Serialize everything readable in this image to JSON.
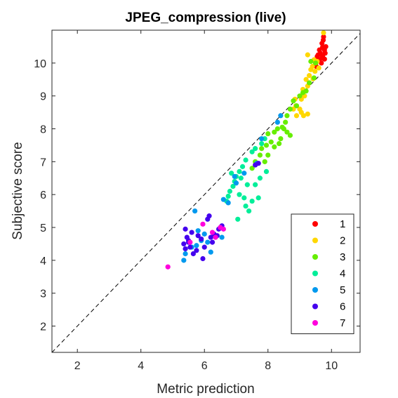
{
  "chart_data": {
    "type": "scatter",
    "title": "JPEG_compression (live)",
    "xlabel": "Metric prediction",
    "ylabel": "Subjective score",
    "xlim": [
      1.2,
      10.9
    ],
    "ylim": [
      1.2,
      11.0
    ],
    "xticks": [
      2,
      4,
      6,
      8,
      10
    ],
    "yticks": [
      2,
      3,
      4,
      5,
      6,
      7,
      8,
      9,
      10
    ],
    "grid": false,
    "reference_line": "y = x (dashed)",
    "legend_position": "bottom-right",
    "series": [
      {
        "name": "1",
        "color": "#ff0000",
        "points": [
          [
            9.75,
            10.8
          ],
          [
            9.7,
            10.6
          ],
          [
            9.72,
            10.48
          ],
          [
            9.62,
            10.4
          ],
          [
            9.78,
            10.4
          ],
          [
            9.65,
            10.3
          ],
          [
            9.8,
            10.3
          ],
          [
            9.55,
            10.2
          ],
          [
            9.72,
            10.2
          ],
          [
            9.6,
            10.1
          ],
          [
            9.78,
            10.12
          ],
          [
            9.5,
            10.0
          ],
          [
            9.68,
            10.0
          ],
          [
            9.52,
            9.9
          ],
          [
            9.7,
            10.15
          ],
          [
            9.58,
            10.25
          ],
          [
            9.82,
            10.5
          ],
          [
            9.74,
            10.7
          ]
        ]
      },
      {
        "name": "2",
        "color": "#ffd700",
        "points": [
          [
            9.75,
            10.92
          ],
          [
            9.25,
            10.25
          ],
          [
            9.45,
            10.1
          ],
          [
            9.4,
            9.9
          ],
          [
            9.35,
            9.8
          ],
          [
            9.48,
            9.75
          ],
          [
            9.3,
            9.62
          ],
          [
            9.42,
            9.52
          ],
          [
            9.2,
            9.5
          ],
          [
            9.25,
            9.3
          ],
          [
            9.1,
            9.2
          ],
          [
            9.15,
            9.0
          ],
          [
            9.05,
            8.9
          ],
          [
            8.85,
            8.9
          ],
          [
            8.88,
            8.7
          ],
          [
            9.0,
            8.6
          ],
          [
            9.05,
            8.5
          ],
          [
            8.9,
            8.4
          ],
          [
            9.25,
            8.45
          ],
          [
            9.12,
            8.4
          ],
          [
            8.8,
            8.6
          ],
          [
            9.55,
            10.05
          ],
          [
            9.6,
            9.85
          ]
        ]
      },
      {
        "name": "3",
        "color": "#66ee00",
        "points": [
          [
            9.5,
            10.0
          ],
          [
            9.35,
            10.05
          ],
          [
            9.45,
            9.55
          ],
          [
            9.3,
            9.4
          ],
          [
            9.2,
            9.15
          ],
          [
            9.1,
            9.1
          ],
          [
            9.0,
            9.0
          ],
          [
            8.8,
            8.85
          ],
          [
            8.9,
            8.7
          ],
          [
            8.7,
            8.6
          ],
          [
            8.6,
            8.4
          ],
          [
            8.55,
            8.2
          ],
          [
            8.45,
            8.05
          ],
          [
            8.3,
            8.0
          ],
          [
            8.2,
            7.9
          ],
          [
            8.0,
            7.85
          ],
          [
            8.1,
            7.6
          ],
          [
            7.95,
            7.5
          ],
          [
            7.8,
            7.4
          ],
          [
            7.75,
            7.2
          ],
          [
            7.6,
            7.0
          ],
          [
            7.5,
            6.8
          ],
          [
            8.5,
            8.0
          ],
          [
            8.7,
            7.8
          ],
          [
            8.4,
            7.7
          ],
          [
            8.2,
            7.45
          ],
          [
            8.0,
            7.2
          ],
          [
            7.9,
            7.0
          ],
          [
            8.35,
            7.55
          ],
          [
            8.6,
            7.9
          ]
        ]
      },
      {
        "name": "4",
        "color": "#00ee99",
        "points": [
          [
            7.9,
            7.7
          ],
          [
            7.8,
            7.55
          ],
          [
            7.6,
            7.4
          ],
          [
            7.5,
            7.3
          ],
          [
            7.3,
            7.05
          ],
          [
            7.2,
            6.85
          ],
          [
            7.1,
            6.7
          ],
          [
            7.0,
            6.55
          ],
          [
            6.95,
            6.4
          ],
          [
            6.9,
            6.25
          ],
          [
            6.8,
            6.1
          ],
          [
            6.75,
            5.95
          ],
          [
            6.7,
            5.8
          ],
          [
            7.15,
            6.5
          ],
          [
            7.35,
            6.3
          ],
          [
            7.1,
            6.0
          ],
          [
            7.25,
            5.9
          ],
          [
            7.5,
            5.8
          ],
          [
            7.3,
            5.65
          ],
          [
            7.05,
            5.25
          ],
          [
            7.7,
            5.9
          ],
          [
            7.6,
            6.3
          ],
          [
            7.95,
            6.7
          ],
          [
            7.75,
            6.5
          ],
          [
            7.4,
            5.5
          ],
          [
            6.85,
            6.65
          ]
        ]
      },
      {
        "name": "5",
        "color": "#0099ee",
        "points": [
          [
            8.3,
            8.2
          ],
          [
            8.4,
            8.4
          ],
          [
            7.8,
            7.7
          ],
          [
            7.65,
            6.95
          ],
          [
            7.25,
            6.65
          ],
          [
            7.0,
            6.35
          ],
          [
            6.95,
            6.55
          ],
          [
            6.75,
            5.75
          ],
          [
            6.6,
            5.85
          ],
          [
            5.7,
            5.5
          ],
          [
            5.8,
            4.9
          ],
          [
            6.0,
            4.8
          ],
          [
            5.9,
            4.6
          ],
          [
            5.6,
            4.4
          ],
          [
            5.4,
            4.2
          ],
          [
            5.35,
            4.0
          ],
          [
            5.75,
            4.45
          ],
          [
            6.1,
            4.55
          ],
          [
            6.2,
            4.25
          ],
          [
            6.55,
            4.7
          ]
        ]
      },
      {
        "name": "6",
        "color": "#4400ee",
        "points": [
          [
            7.7,
            6.95
          ],
          [
            7.6,
            6.9
          ],
          [
            6.15,
            5.35
          ],
          [
            6.1,
            5.25
          ],
          [
            5.4,
            4.95
          ],
          [
            5.6,
            4.85
          ],
          [
            5.8,
            4.75
          ],
          [
            5.9,
            4.65
          ],
          [
            5.45,
            4.7
          ],
          [
            5.5,
            4.55
          ],
          [
            5.55,
            4.4
          ],
          [
            5.65,
            4.2
          ],
          [
            5.4,
            4.35
          ],
          [
            5.35,
            4.5
          ],
          [
            5.75,
            4.3
          ],
          [
            6.0,
            4.4
          ],
          [
            6.2,
            4.7
          ],
          [
            6.3,
            4.8
          ],
          [
            6.45,
            4.95
          ],
          [
            6.55,
            5.05
          ],
          [
            6.4,
            4.75
          ],
          [
            5.95,
            4.05
          ],
          [
            6.25,
            4.55
          ],
          [
            5.5,
            4.6
          ]
        ]
      },
      {
        "name": "7",
        "color": "#ff00dd",
        "points": [
          [
            4.85,
            3.8
          ],
          [
            5.55,
            4.55
          ],
          [
            5.95,
            5.1
          ],
          [
            6.25,
            4.85
          ],
          [
            6.35,
            4.7
          ],
          [
            6.5,
            5.0
          ],
          [
            6.6,
            4.95
          ]
        ]
      }
    ]
  }
}
